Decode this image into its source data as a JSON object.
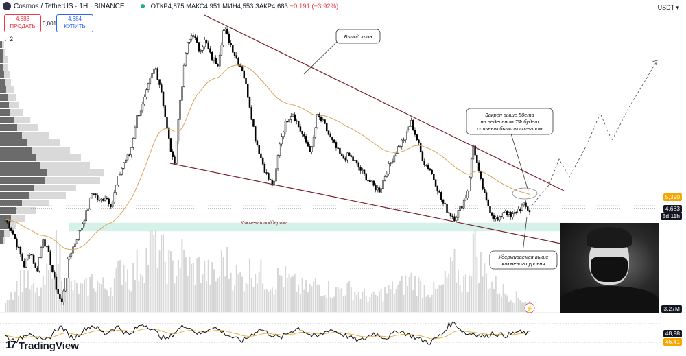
{
  "header": {
    "symbol": "Cosmos / TetherUS · 1H · BINANCE",
    "open": "ОТКР4,875",
    "high": "МАКС4,951",
    "low": "МИН4,553",
    "close": "ЗАКР4,683",
    "change": "−0,191 (−3,92%)"
  },
  "trade": {
    "sell_price": "4,683",
    "sell_label": "ПРОДАТЬ",
    "spread": "0,001",
    "buy_price": "4,684",
    "buy_label": "КУПИТЬ"
  },
  "indicator_count": "2",
  "currency": "USDT",
  "axis_tags": {
    "upper": "5,390",
    "price": "4,683",
    "countdown": "5d 11h",
    "volume": "3,27M",
    "rsi1": "48,98",
    "rsi2": "46,41"
  },
  "annotations": {
    "wedge": "Бычий клин",
    "ema": [
      "Закреп выше 50ema",
      "на недельном ТФ будет",
      "сильным бычьим сигналом"
    ],
    "support": "Ключевая поддержка",
    "hold": [
      "Удерживаемся выше",
      "ключевого уровня"
    ]
  },
  "logo": "TradingView",
  "colors": {
    "up": "#000000",
    "down": "#000000",
    "ema": "#d8a25a",
    "wedge": "#7a1f2b",
    "support": "#cfeee5",
    "volume": "#d6d6d6",
    "rsi": "#111111",
    "rsi_ma": "#e3b341",
    "tag_orange": "#f7a600",
    "tag_dark": "#131722"
  },
  "chart_data": {
    "type": "candlestick",
    "scale": "log",
    "y_ticks": [
      "48,000",
      "38,000",
      "30,000",
      "24,000",
      "20,000",
      "16,000",
      "13,000",
      "10,000",
      "8,000",
      "6,500",
      "5,200",
      "4,000",
      "3,200",
      "2,600",
      "2,100",
      "1,750",
      "1,450"
    ],
    "support_zone": [
      3.65,
      4.05
    ],
    "close_path": [
      4.2,
      3.7,
      3.0,
      2.4,
      2.9,
      2.2,
      3.4,
      2.7,
      1.9,
      1.5,
      2.6,
      3.1,
      3.8,
      4.6,
      6.0,
      5.2,
      5.6,
      5.0,
      6.8,
      8.5,
      9.4,
      14.5,
      16.8,
      22.0,
      27.0,
      20.0,
      12.0,
      8.0,
      18.0,
      34.0,
      41.0,
      33.0,
      37.0,
      30.0,
      28.0,
      43.0,
      36.0,
      30.0,
      26.0,
      18.0,
      11.5,
      8.8,
      7.0,
      6.3,
      11.0,
      14.0,
      15.5,
      13.0,
      11.0,
      9.6,
      14.8,
      13.5,
      11.4,
      10.0,
      8.8,
      9.2,
      8.5,
      7.6,
      6.9,
      6.3,
      6.0,
      7.5,
      8.8,
      10.2,
      11.5,
      13.8,
      11.0,
      8.5,
      7.8,
      6.5,
      5.2,
      4.6,
      4.3,
      4.9,
      5.8,
      10.5,
      7.0,
      5.3,
      4.5,
      4.1,
      4.8,
      4.3,
      4.7,
      5.0,
      4.683
    ],
    "volume": [
      0.18,
      0.25,
      0.35,
      0.45,
      0.3,
      0.22,
      0.3,
      0.5,
      0.9,
      0.6,
      0.35,
      0.3,
      0.28,
      0.3,
      0.4,
      0.35,
      0.3,
      0.33,
      0.45,
      0.6,
      0.4,
      0.55,
      0.6,
      0.75,
      0.95,
      0.7,
      0.6,
      0.5,
      0.7,
      0.6,
      0.5,
      0.55,
      0.5,
      0.45,
      0.4,
      0.7,
      0.5,
      0.45,
      0.4,
      0.5,
      0.55,
      0.45,
      0.4,
      0.35,
      0.45,
      0.4,
      0.35,
      0.3,
      0.28,
      0.3,
      0.35,
      0.3,
      0.28,
      0.25,
      0.3,
      0.28,
      0.25,
      0.22,
      0.2,
      0.18,
      0.22,
      0.25,
      0.28,
      0.3,
      0.35,
      0.4,
      0.35,
      0.3,
      0.28,
      0.25,
      0.3,
      0.45,
      0.55,
      0.4,
      0.35,
      0.9,
      0.6,
      0.45,
      0.35,
      0.3,
      0.25,
      0.2,
      0.18,
      0.15,
      0.12
    ],
    "rsi": [
      45,
      40,
      38,
      46,
      52,
      44,
      36,
      42,
      55,
      60,
      48,
      42,
      50,
      58,
      62,
      55,
      48,
      56,
      60,
      52,
      46,
      58,
      64,
      60,
      52,
      44,
      40,
      50,
      58,
      62,
      55,
      48,
      52,
      60,
      56,
      50,
      45,
      40,
      38,
      44,
      52,
      56,
      50,
      46,
      42,
      48,
      54,
      58,
      52,
      46,
      44,
      50,
      56,
      52,
      48,
      44,
      40,
      38,
      44,
      50,
      46,
      42,
      48,
      54,
      50,
      46,
      42,
      38,
      35,
      42,
      48,
      62,
      66,
      55,
      48,
      50,
      46,
      44,
      50,
      48,
      46,
      48,
      52,
      50,
      49
    ]
  }
}
